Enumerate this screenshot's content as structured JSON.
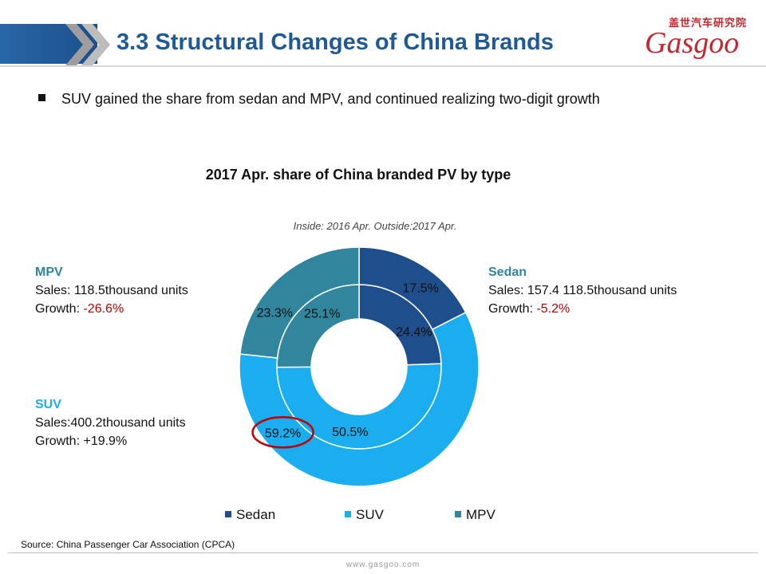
{
  "header": {
    "title": "3.3 Structural Changes of China Brands",
    "logo_cn": "盖世汽车研究院",
    "logo_en": "Gasgoo"
  },
  "bullet": "SUV gained the share from sedan and MPV, and continued realizing two-digit growth",
  "chart_data": {
    "type": "pie",
    "variant": "double-donut",
    "title": "2017 Apr. share of China branded PV by type",
    "subtitle": "Inside: 2016 Apr. Outside:2017 Apr.",
    "categories": [
      "Sedan",
      "SUV",
      "MPV"
    ],
    "colors": [
      "#1f4e8c",
      "#1aaef0",
      "#31859c"
    ],
    "series": [
      {
        "name": "2016 Apr.",
        "ring": "inner",
        "values": [
          24.4,
          50.5,
          25.1
        ],
        "labels": [
          "24.4%",
          "50.5%",
          "25.1%"
        ]
      },
      {
        "name": "2017 Apr.",
        "ring": "outer",
        "values": [
          17.5,
          59.2,
          23.3
        ],
        "labels": [
          "17.5%",
          "59.2%",
          "23.3%"
        ]
      }
    ],
    "highlight": {
      "series": "2017 Apr.",
      "category": "SUV",
      "color": "#c00000"
    },
    "legend": {
      "position": "bottom",
      "entries": [
        "Sedan",
        "SUV",
        "MPV"
      ]
    }
  },
  "callouts": {
    "sedan": {
      "name": "Sedan",
      "sales": "Sales: 157.4 118.5thousand units",
      "growth_prefix": "Growth: ",
      "growth_value": "-5.2%"
    },
    "mpv": {
      "name": "MPV",
      "sales": "Sales: 118.5thousand units",
      "growth_prefix": "Growth: ",
      "growth_value": "-26.6%"
    },
    "suv": {
      "name": "SUV",
      "sales": "Sales:400.2thousand units",
      "growth_prefix": "Growth: ",
      "growth_value": "+19.9%"
    }
  },
  "source": "Source: China Passenger Car Association (CPCA)",
  "footer_url": "www.gasgoo.com"
}
